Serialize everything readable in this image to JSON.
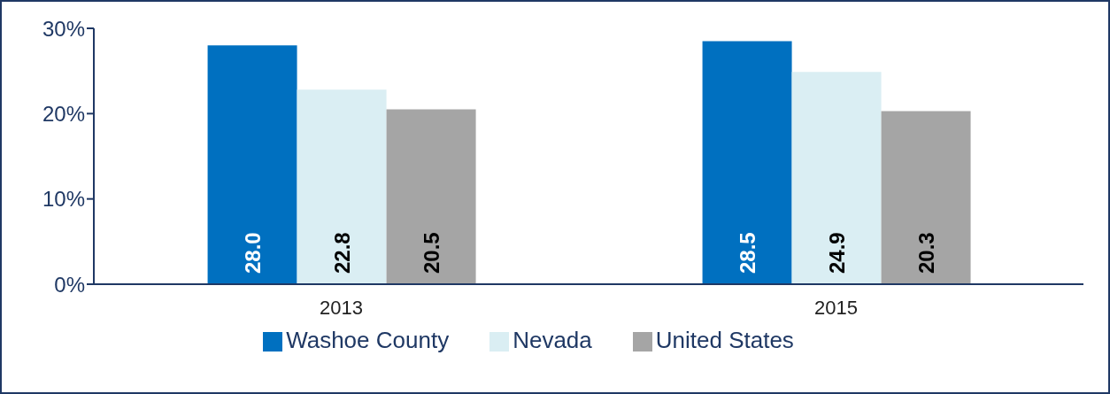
{
  "chart_data": {
    "type": "bar",
    "categories": [
      "2013",
      "2015"
    ],
    "series": [
      {
        "name": "Washoe County",
        "color": "#0070c0",
        "values": [
          28.0,
          28.5
        ],
        "value_labels": [
          "28.0",
          "28.5"
        ]
      },
      {
        "name": "Nevada",
        "color": "#daeef3",
        "values": [
          22.8,
          24.9
        ],
        "value_labels": [
          "22.8",
          "24.9"
        ]
      },
      {
        "name": "United States",
        "color": "#a5a5a5",
        "values": [
          20.5,
          20.3
        ],
        "value_labels": [
          "20.5",
          "20.3"
        ]
      }
    ],
    "ylim": [
      0,
      30
    ],
    "yticks": [
      {
        "value": 0,
        "label": "0%"
      },
      {
        "value": 10,
        "label": "10%"
      },
      {
        "value": 20,
        "label": "20%"
      },
      {
        "value": 30,
        "label": "30%"
      }
    ],
    "grid": false,
    "legend": "bottom"
  }
}
